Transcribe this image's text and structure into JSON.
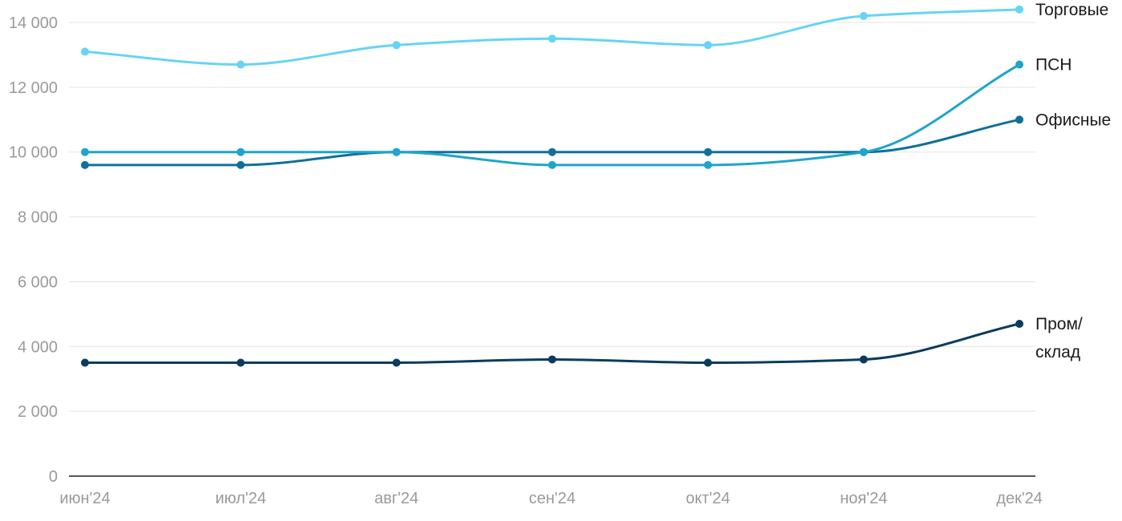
{
  "chart_data": {
    "type": "line",
    "categories": [
      "июн'24",
      "июл'24",
      "авг'24",
      "сен'24",
      "окт'24",
      "ноя'24",
      "дек'24"
    ],
    "ylim": [
      0,
      14000
    ],
    "yticks": [
      0,
      2000,
      4000,
      6000,
      8000,
      10000,
      12000,
      14000
    ],
    "ytick_labels": [
      "0",
      "2 000",
      "4 000",
      "6 000",
      "8 000",
      "10 000",
      "12 000",
      "14 000"
    ],
    "grid": true,
    "legend": "end-of-line labels",
    "series": [
      {
        "name": "Торговые",
        "label_lines": [
          "Торговые"
        ],
        "color": "#66d4f5",
        "values": [
          13100,
          12700,
          13300,
          13500,
          13300,
          14200,
          14400
        ]
      },
      {
        "name": "ПСН",
        "label_lines": [
          "ПСН"
        ],
        "color": "#1fa5cc",
        "values": [
          10000,
          10000,
          10000,
          9600,
          9600,
          10000,
          12700
        ]
      },
      {
        "name": "Офисные",
        "label_lines": [
          "Офисные"
        ],
        "color": "#10709a",
        "values": [
          9600,
          9600,
          10000,
          10000,
          10000,
          10000,
          11000
        ]
      },
      {
        "name": "Пром/склад",
        "label_lines": [
          "Пром/",
          "склад"
        ],
        "color": "#0b3c5e",
        "values": [
          3500,
          3500,
          3500,
          3600,
          3500,
          3600,
          4700
        ]
      }
    ]
  }
}
